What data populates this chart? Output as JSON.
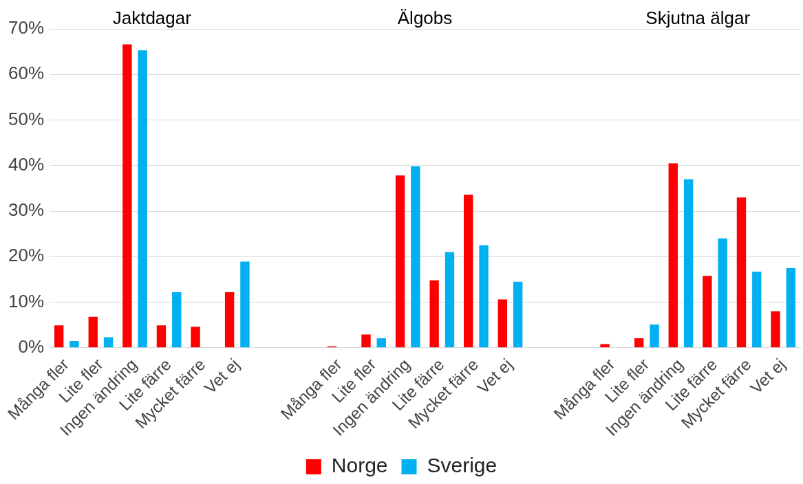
{
  "chart_data": {
    "type": "bar",
    "categories": [
      "Många fler",
      "Lite fler",
      "Ingen ändring",
      "Lite färre",
      "Mycket färre",
      "Vet ej",
      null,
      null,
      "Många fler",
      "Lite fler",
      "Ingen ändring",
      "Lite färre",
      "Mycket färre",
      "Vet ej",
      null,
      null,
      "Många fler",
      "Lite fler",
      "Ingen ändring",
      "Lite färre",
      "Mycket färre",
      "Vet ej"
    ],
    "series": [
      {
        "name": "Norge",
        "color": "#ff0000",
        "values": [
          4.9,
          6.8,
          66.6,
          4.9,
          4.6,
          12.2,
          null,
          null,
          0.3,
          2.9,
          37.8,
          14.8,
          33.6,
          10.6,
          null,
          null,
          0.8,
          2.1,
          40.5,
          15.8,
          33.0,
          8.0
        ]
      },
      {
        "name": "Sverige",
        "color": "#00b0f0",
        "values": [
          1.5,
          2.3,
          65.3,
          12.2,
          0,
          18.9,
          null,
          null,
          0,
          2.1,
          39.8,
          21.0,
          22.5,
          14.5,
          null,
          null,
          0,
          5.1,
          37.0,
          24.0,
          16.7,
          17.5
        ]
      }
    ],
    "ylim": [
      0,
      70
    ],
    "yticks": [
      {
        "value": 0,
        "label": "0%"
      },
      {
        "value": 10,
        "label": "10%"
      },
      {
        "value": 20,
        "label": "20%"
      },
      {
        "value": 30,
        "label": "30%"
      },
      {
        "value": 40,
        "label": "40%"
      },
      {
        "value": 50,
        "label": "50%"
      },
      {
        "value": 60,
        "label": "60%"
      },
      {
        "value": 70,
        "label": "70%"
      }
    ],
    "grid": "y",
    "legend": "bottom",
    "annotations": [
      "Jaktdagar",
      "Älgobs",
      "Skjutna älgar"
    ]
  }
}
